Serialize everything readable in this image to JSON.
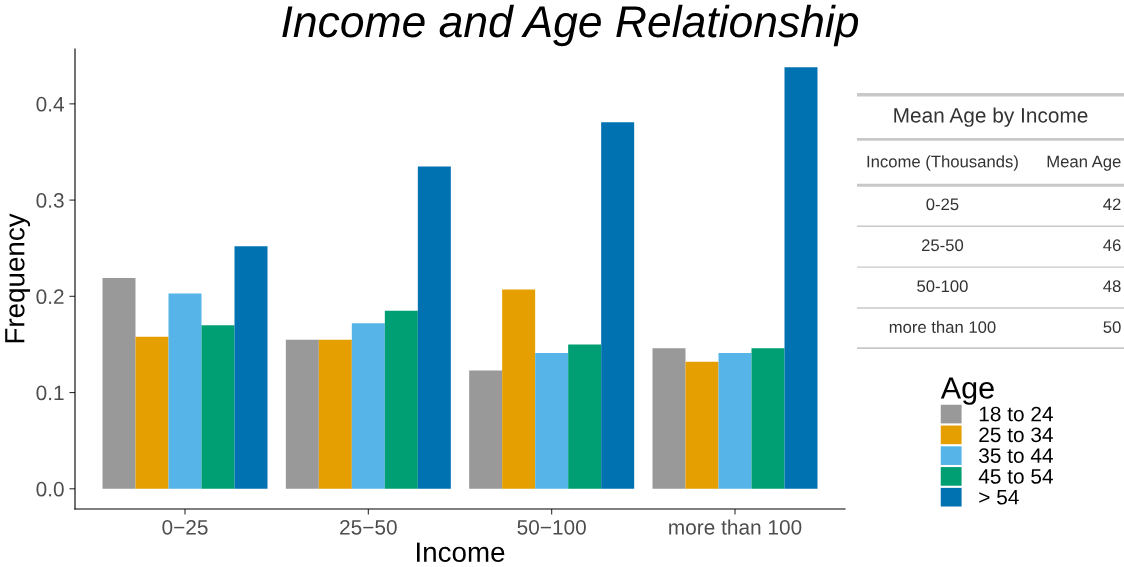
{
  "chart_data": [
    {
      "type": "bar",
      "title": "Income and Age Relationship",
      "xlabel": "Income",
      "ylabel": "Frequency",
      "legend_title": "Age",
      "legend": "right",
      "grid": false,
      "categories": [
        "0−25",
        "25−50",
        "50−100",
        "more than 100"
      ],
      "ylim": [
        -0.021,
        0.457
      ],
      "yticks": [
        {
          "value": 0,
          "label": "0.0"
        },
        0.1,
        0.2,
        0.3,
        0.4
      ],
      "series": [
        {
          "name": "18 to 24",
          "color": "#999999",
          "values": [
            0.219,
            0.155,
            0.123,
            0.146
          ]
        },
        {
          "name": "25 to 34",
          "color": "#e69f00",
          "values": [
            0.158,
            0.155,
            0.207,
            0.132
          ]
        },
        {
          "name": "35 to 44",
          "color": "#56b4e9",
          "values": [
            0.203,
            0.172,
            0.141,
            0.141
          ]
        },
        {
          "name": "45 to 54",
          "color": "#009e73",
          "values": [
            0.17,
            0.185,
            0.15,
            0.146
          ]
        },
        {
          "name": "> 54",
          "color": "#0072b2",
          "values": [
            0.252,
            0.335,
            0.381,
            0.438
          ]
        }
      ]
    },
    {
      "type": "other",
      "title": "Mean Age by Income",
      "xlabel": "Income (Thousands)",
      "ylabel": "Mean Age",
      "data_labels": true,
      "categories": [
        "0-25",
        "25-50",
        "50-100",
        "more than 100"
      ],
      "values": [
        42,
        46,
        48,
        50
      ]
    }
  ]
}
